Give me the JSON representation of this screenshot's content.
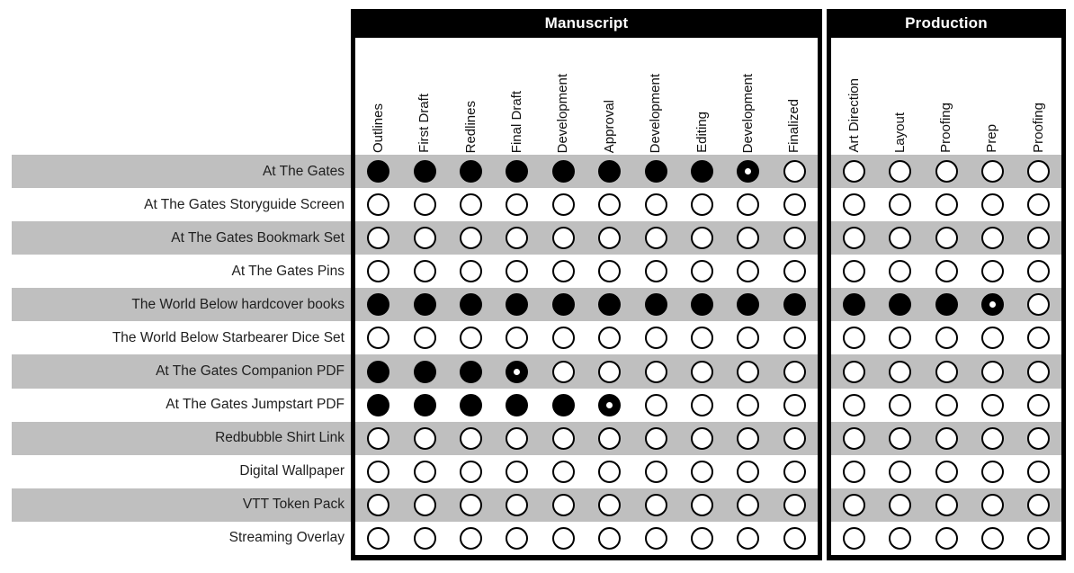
{
  "chart_data": {
    "type": "table",
    "subtype": "status-matrix",
    "cell_state_glyphs": {
      "filled": "solid black circle",
      "partial": "black circle with small white center dot",
      "empty": "hollow circle with black outline"
    },
    "layout_hints": {
      "row_stripes": "alternating gray starting with first row",
      "column_header_orientation": "vertical, reading bottom to top"
    },
    "column_groups": [
      {
        "label": "Manuscript",
        "columns": [
          "Outlines",
          "First Draft",
          "Redlines",
          "Final Draft",
          "Development",
          "Approval",
          "Development",
          "Editing",
          "Development",
          "Finalized"
        ]
      },
      {
        "label": "Production",
        "columns": [
          "Art Direction",
          "Layout",
          "Proofing",
          "Prep",
          "Proofing"
        ]
      }
    ],
    "rows": [
      {
        "label": "At The Gates",
        "manuscript": [
          "filled",
          "filled",
          "filled",
          "filled",
          "filled",
          "filled",
          "filled",
          "filled",
          "partial",
          "empty"
        ],
        "production": [
          "empty",
          "empty",
          "empty",
          "empty",
          "empty"
        ]
      },
      {
        "label": "At The Gates Storyguide Screen",
        "manuscript": [
          "empty",
          "empty",
          "empty",
          "empty",
          "empty",
          "empty",
          "empty",
          "empty",
          "empty",
          "empty"
        ],
        "production": [
          "empty",
          "empty",
          "empty",
          "empty",
          "empty"
        ]
      },
      {
        "label": "At The Gates Bookmark Set",
        "manuscript": [
          "empty",
          "empty",
          "empty",
          "empty",
          "empty",
          "empty",
          "empty",
          "empty",
          "empty",
          "empty"
        ],
        "production": [
          "empty",
          "empty",
          "empty",
          "empty",
          "empty"
        ]
      },
      {
        "label": "At The Gates Pins",
        "manuscript": [
          "empty",
          "empty",
          "empty",
          "empty",
          "empty",
          "empty",
          "empty",
          "empty",
          "empty",
          "empty"
        ],
        "production": [
          "empty",
          "empty",
          "empty",
          "empty",
          "empty"
        ]
      },
      {
        "label": "The World Below hardcover books",
        "manuscript": [
          "filled",
          "filled",
          "filled",
          "filled",
          "filled",
          "filled",
          "filled",
          "filled",
          "filled",
          "filled"
        ],
        "production": [
          "filled",
          "filled",
          "filled",
          "partial",
          "empty"
        ]
      },
      {
        "label": "The World Below Starbearer Dice Set",
        "manuscript": [
          "empty",
          "empty",
          "empty",
          "empty",
          "empty",
          "empty",
          "empty",
          "empty",
          "empty",
          "empty"
        ],
        "production": [
          "empty",
          "empty",
          "empty",
          "empty",
          "empty"
        ]
      },
      {
        "label": "At The Gates Companion PDF",
        "manuscript": [
          "filled",
          "filled",
          "filled",
          "partial",
          "empty",
          "empty",
          "empty",
          "empty",
          "empty",
          "empty"
        ],
        "production": [
          "empty",
          "empty",
          "empty",
          "empty",
          "empty"
        ]
      },
      {
        "label": "At The Gates Jumpstart PDF",
        "manuscript": [
          "filled",
          "filled",
          "filled",
          "filled",
          "filled",
          "partial",
          "empty",
          "empty",
          "empty",
          "empty"
        ],
        "production": [
          "empty",
          "empty",
          "empty",
          "empty",
          "empty"
        ]
      },
      {
        "label": "Redbubble Shirt Link",
        "manuscript": [
          "empty",
          "empty",
          "empty",
          "empty",
          "empty",
          "empty",
          "empty",
          "empty",
          "empty",
          "empty"
        ],
        "production": [
          "empty",
          "empty",
          "empty",
          "empty",
          "empty"
        ]
      },
      {
        "label": "Digital Wallpaper",
        "manuscript": [
          "empty",
          "empty",
          "empty",
          "empty",
          "empty",
          "empty",
          "empty",
          "empty",
          "empty",
          "empty"
        ],
        "production": [
          "empty",
          "empty",
          "empty",
          "empty",
          "empty"
        ]
      },
      {
        "label": "VTT Token Pack",
        "manuscript": [
          "empty",
          "empty",
          "empty",
          "empty",
          "empty",
          "empty",
          "empty",
          "empty",
          "empty",
          "empty"
        ],
        "production": [
          "empty",
          "empty",
          "empty",
          "empty",
          "empty"
        ]
      },
      {
        "label": "Streaming Overlay",
        "manuscript": [
          "empty",
          "empty",
          "empty",
          "empty",
          "empty",
          "empty",
          "empty",
          "empty",
          "empty",
          "empty"
        ],
        "production": [
          "empty",
          "empty",
          "empty",
          "empty",
          "empty"
        ]
      }
    ]
  },
  "colors": {
    "stripe": "#bfbfbf",
    "header_bg": "#000000",
    "header_text": "#ffffff",
    "border": "#000000",
    "dot_filled": "#000000",
    "label_text": "#1f1f1f"
  }
}
